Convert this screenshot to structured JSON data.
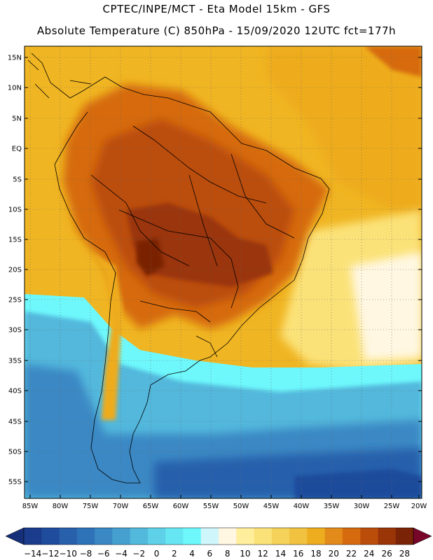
{
  "header": {
    "line1": "CPTEC/INPE/MCT -  Eta Model 15km - GFS",
    "line2": "Absolute Temperature (C) 850hPa - 15/09/2020 12UTC fct=177h"
  },
  "map": {
    "variable": "Absolute Temperature (C) at 850hPa",
    "region": "South America",
    "lat_labels": [
      "15N",
      "10N",
      "5N",
      "EQ",
      "5S",
      "10S",
      "15S",
      "20S",
      "25S",
      "30S",
      "35S",
      "40S",
      "45S",
      "50S",
      "55S"
    ],
    "lon_labels": [
      "85W",
      "80W",
      "75W",
      "70W",
      "65W",
      "60W",
      "55W",
      "50W",
      "45W",
      "40W",
      "35W",
      "30W",
      "25W",
      "20W"
    ]
  },
  "colorbar": {
    "labels": [
      "-14",
      "-12",
      "-10",
      "-8",
      "-6",
      "-4",
      "-2",
      "0",
      "2",
      "4",
      "6",
      "8",
      "10",
      "12",
      "14",
      "16",
      "18",
      "20",
      "22",
      "24",
      "26",
      "28"
    ],
    "colors": [
      "#1b3c8c",
      "#1f4c9c",
      "#2860ac",
      "#2e72b8",
      "#3a88c4",
      "#45a0d0",
      "#52b8dc",
      "#5ed0e8",
      "#66e6f2",
      "#6ef8fc",
      "#cff6fb",
      "#fff7e2",
      "#ffee9c",
      "#fbe278",
      "#f5d259",
      "#f1c140",
      "#eeac1f",
      "#e28a1a",
      "#d66a0f",
      "#bb4d0b",
      "#9a3508",
      "#7a2306"
    ],
    "low_arrow_color": "#16307a",
    "high_arrow_color": "#78052a"
  }
}
